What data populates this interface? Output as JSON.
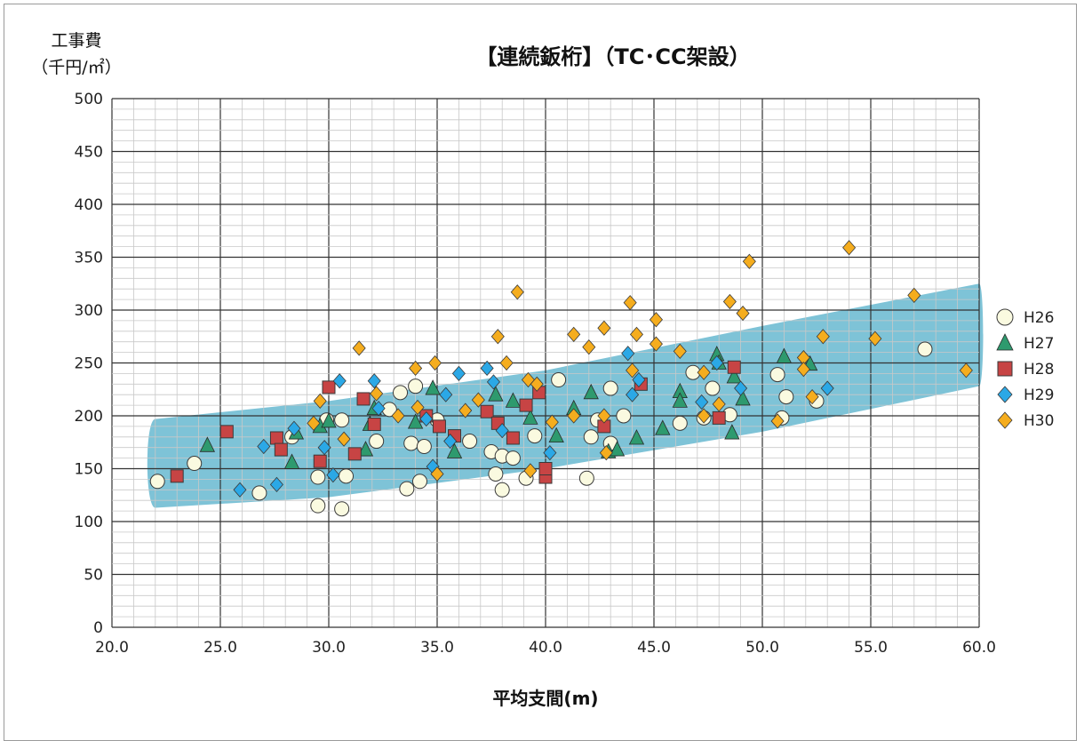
{
  "chart_data": {
    "type": "scatter",
    "title": "【連続鈑桁】（TC･CC架設）",
    "ylabel_line1": "工事費",
    "ylabel_line2": "（千円/㎡）",
    "xlabel": "平均支間(m)",
    "xlim": [
      20.0,
      60.0
    ],
    "ylim": [
      0,
      500
    ],
    "xticks": [
      "20.0",
      "25.0",
      "30.0",
      "35.0",
      "40.0",
      "45.0",
      "50.0",
      "55.0",
      "60.0"
    ],
    "yticks": [
      "0",
      "50",
      "100",
      "150",
      "200",
      "250",
      "300",
      "350",
      "400",
      "450",
      "500"
    ],
    "grid": true,
    "legend_position": "right",
    "band": {
      "color": "#7ec3d7",
      "lower": [
        [
          22.0,
          113
        ],
        [
          30.0,
          123
        ],
        [
          40.0,
          150
        ],
        [
          50.0,
          185
        ],
        [
          60.0,
          228
        ]
      ],
      "upper": [
        [
          22.0,
          197
        ],
        [
          30.0,
          214
        ],
        [
          40.0,
          243
        ],
        [
          50.0,
          285
        ],
        [
          60.0,
          325
        ]
      ]
    },
    "series": [
      {
        "name": "H26",
        "marker": "circle",
        "color": "#fafae0",
        "points": [
          [
            22.1,
            138
          ],
          [
            23.8,
            155
          ],
          [
            26.8,
            127
          ],
          [
            28.3,
            180
          ],
          [
            29.5,
            115
          ],
          [
            29.5,
            142
          ],
          [
            29.9,
            196
          ],
          [
            30.6,
            112
          ],
          [
            30.6,
            196
          ],
          [
            30.8,
            143
          ],
          [
            32.2,
            176
          ],
          [
            32.8,
            206
          ],
          [
            33.3,
            222
          ],
          [
            33.6,
            131
          ],
          [
            33.8,
            174
          ],
          [
            34.0,
            228
          ],
          [
            34.2,
            138
          ],
          [
            34.4,
            171
          ],
          [
            35.0,
            196
          ],
          [
            36.5,
            176
          ],
          [
            37.5,
            166
          ],
          [
            37.7,
            145
          ],
          [
            38.0,
            130
          ],
          [
            38.0,
            162
          ],
          [
            38.5,
            160
          ],
          [
            39.1,
            141
          ],
          [
            39.5,
            181
          ],
          [
            40.6,
            234
          ],
          [
            41.9,
            141
          ],
          [
            42.1,
            180
          ],
          [
            42.4,
            196
          ],
          [
            43.0,
            226
          ],
          [
            43.0,
            174
          ],
          [
            43.6,
            200
          ],
          [
            46.2,
            193
          ],
          [
            46.8,
            241
          ],
          [
            47.3,
            198
          ],
          [
            47.7,
            226
          ],
          [
            48.5,
            201
          ],
          [
            50.7,
            239
          ],
          [
            50.9,
            198
          ],
          [
            51.1,
            218
          ],
          [
            52.5,
            214
          ],
          [
            57.5,
            263
          ]
        ]
      },
      {
        "name": "H27",
        "marker": "triangle",
        "color": "#2e9a6e",
        "points": [
          [
            24.4,
            172
          ],
          [
            28.3,
            156
          ],
          [
            28.5,
            184
          ],
          [
            29.6,
            190
          ],
          [
            30.0,
            195
          ],
          [
            31.7,
            168
          ],
          [
            31.9,
            192
          ],
          [
            32.1,
            207
          ],
          [
            34.0,
            194
          ],
          [
            34.8,
            226
          ],
          [
            35.8,
            166
          ],
          [
            37.7,
            220
          ],
          [
            38.5,
            214
          ],
          [
            39.3,
            198
          ],
          [
            40.5,
            181
          ],
          [
            41.3,
            207
          ],
          [
            42.1,
            222
          ],
          [
            42.9,
            166
          ],
          [
            43.3,
            168
          ],
          [
            44.2,
            179
          ],
          [
            45.4,
            188
          ],
          [
            46.2,
            223
          ],
          [
            46.2,
            214
          ],
          [
            47.9,
            258
          ],
          [
            48.0,
            250
          ],
          [
            48.6,
            184
          ],
          [
            48.7,
            237
          ],
          [
            49.1,
            216
          ],
          [
            51.0,
            256
          ],
          [
            52.2,
            249
          ]
        ]
      },
      {
        "name": "H28",
        "marker": "square",
        "color": "#c74444",
        "points": [
          [
            23.0,
            143
          ],
          [
            25.3,
            185
          ],
          [
            27.6,
            179
          ],
          [
            27.8,
            168
          ],
          [
            29.6,
            157
          ],
          [
            30.0,
            227
          ],
          [
            31.2,
            164
          ],
          [
            31.6,
            216
          ],
          [
            32.1,
            192
          ],
          [
            34.5,
            200
          ],
          [
            35.1,
            190
          ],
          [
            35.8,
            181
          ],
          [
            37.3,
            204
          ],
          [
            37.8,
            193
          ],
          [
            38.5,
            179
          ],
          [
            39.1,
            210
          ],
          [
            39.7,
            222
          ],
          [
            40.0,
            142
          ],
          [
            40.0,
            150
          ],
          [
            42.7,
            190
          ],
          [
            44.4,
            230
          ],
          [
            48.0,
            198
          ],
          [
            48.7,
            246
          ]
        ]
      },
      {
        "name": "H29",
        "marker": "diamond",
        "color": "#2ba8e6",
        "points": [
          [
            25.9,
            130
          ],
          [
            27.0,
            171
          ],
          [
            27.6,
            135
          ],
          [
            28.4,
            188
          ],
          [
            29.8,
            170
          ],
          [
            30.2,
            144
          ],
          [
            30.5,
            233
          ],
          [
            32.1,
            233
          ],
          [
            32.3,
            207
          ],
          [
            34.5,
            197
          ],
          [
            34.8,
            152
          ],
          [
            35.4,
            220
          ],
          [
            35.6,
            176
          ],
          [
            36.0,
            240
          ],
          [
            37.3,
            245
          ],
          [
            37.6,
            232
          ],
          [
            38.0,
            186
          ],
          [
            40.2,
            165
          ],
          [
            43.8,
            259
          ],
          [
            44.0,
            220
          ],
          [
            44.3,
            234
          ],
          [
            47.2,
            213
          ],
          [
            47.9,
            250
          ],
          [
            49.0,
            226
          ],
          [
            53.0,
            226
          ]
        ]
      },
      {
        "name": "H30",
        "marker": "diamond",
        "color": "#f5ad1e",
        "points": [
          [
            29.3,
            193
          ],
          [
            29.6,
            214
          ],
          [
            30.7,
            178
          ],
          [
            31.4,
            264
          ],
          [
            32.2,
            221
          ],
          [
            33.2,
            200
          ],
          [
            34.0,
            245
          ],
          [
            34.1,
            208
          ],
          [
            34.9,
            250
          ],
          [
            35.0,
            145
          ],
          [
            36.3,
            205
          ],
          [
            36.9,
            215
          ],
          [
            37.8,
            275
          ],
          [
            38.2,
            250
          ],
          [
            38.7,
            317
          ],
          [
            39.3,
            148
          ],
          [
            39.2,
            234
          ],
          [
            39.6,
            230
          ],
          [
            40.3,
            194
          ],
          [
            41.3,
            277
          ],
          [
            41.3,
            200
          ],
          [
            42.0,
            265
          ],
          [
            42.7,
            283
          ],
          [
            42.7,
            200
          ],
          [
            42.8,
            165
          ],
          [
            43.9,
            307
          ],
          [
            44.2,
            277
          ],
          [
            44.0,
            243
          ],
          [
            45.1,
            291
          ],
          [
            45.1,
            268
          ],
          [
            46.2,
            261
          ],
          [
            47.3,
            241
          ],
          [
            47.3,
            200
          ],
          [
            48.0,
            211
          ],
          [
            48.5,
            308
          ],
          [
            49.1,
            297
          ],
          [
            49.4,
            346
          ],
          [
            50.7,
            195
          ],
          [
            51.9,
            255
          ],
          [
            51.9,
            244
          ],
          [
            52.3,
            218
          ],
          [
            52.8,
            275
          ],
          [
            54.0,
            359
          ],
          [
            55.2,
            273
          ],
          [
            57.0,
            314
          ],
          [
            59.4,
            243
          ]
        ]
      }
    ]
  }
}
